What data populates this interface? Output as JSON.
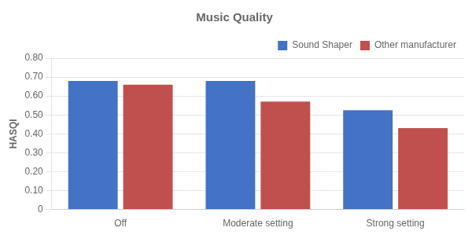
{
  "chart_data": {
    "type": "bar",
    "title": "Music Quality",
    "ylabel": "HASQI",
    "categories": [
      "Off",
      "Moderate setting",
      "Strong setting"
    ],
    "series": [
      {
        "name": "Sound Shaper",
        "color": "#4472C4",
        "values": [
          0.68,
          0.68,
          0.525
        ]
      },
      {
        "name": "Other manufacturer",
        "color": "#C0504D",
        "values": [
          0.66,
          0.57,
          0.43
        ]
      }
    ],
    "ylim": [
      0,
      0.8
    ],
    "yticks": [
      0,
      {
        "value": 0.1,
        "label": "0.10"
      },
      {
        "value": 0.2,
        "label": "0.20"
      },
      {
        "value": 0.3,
        "label": "0.30"
      },
      {
        "value": 0.4,
        "label": "0.40"
      },
      {
        "value": 0.5,
        "label": "0.50"
      },
      {
        "value": 0.6,
        "label": "0.60"
      },
      {
        "value": 0.7,
        "label": "0.70"
      },
      {
        "value": 0.8,
        "label": "0.80"
      }
    ],
    "grid": true,
    "legend": "upper right"
  }
}
